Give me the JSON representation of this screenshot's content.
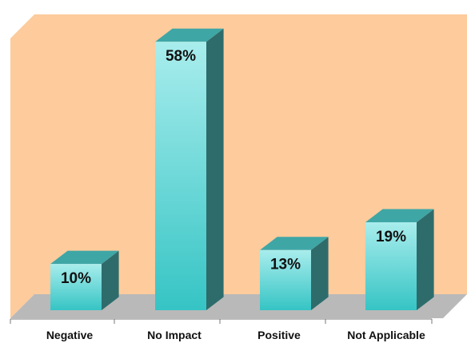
{
  "chart_data": {
    "type": "bar",
    "categories": [
      "Negative",
      "No Impact",
      "Positive",
      "Not Applicable"
    ],
    "values": [
      10,
      58,
      13,
      19
    ],
    "value_labels": [
      "10%",
      "58%",
      "13%",
      "19%"
    ],
    "ylim": [
      0,
      60
    ],
    "grid": false,
    "three_d": true,
    "colors": {
      "wall": "#fdcb9c",
      "floor": "#b9b9b9",
      "bar_front": "#5fd6d6",
      "bar_top": "#3fa6a6",
      "bar_side": "#2e6c6c"
    }
  }
}
